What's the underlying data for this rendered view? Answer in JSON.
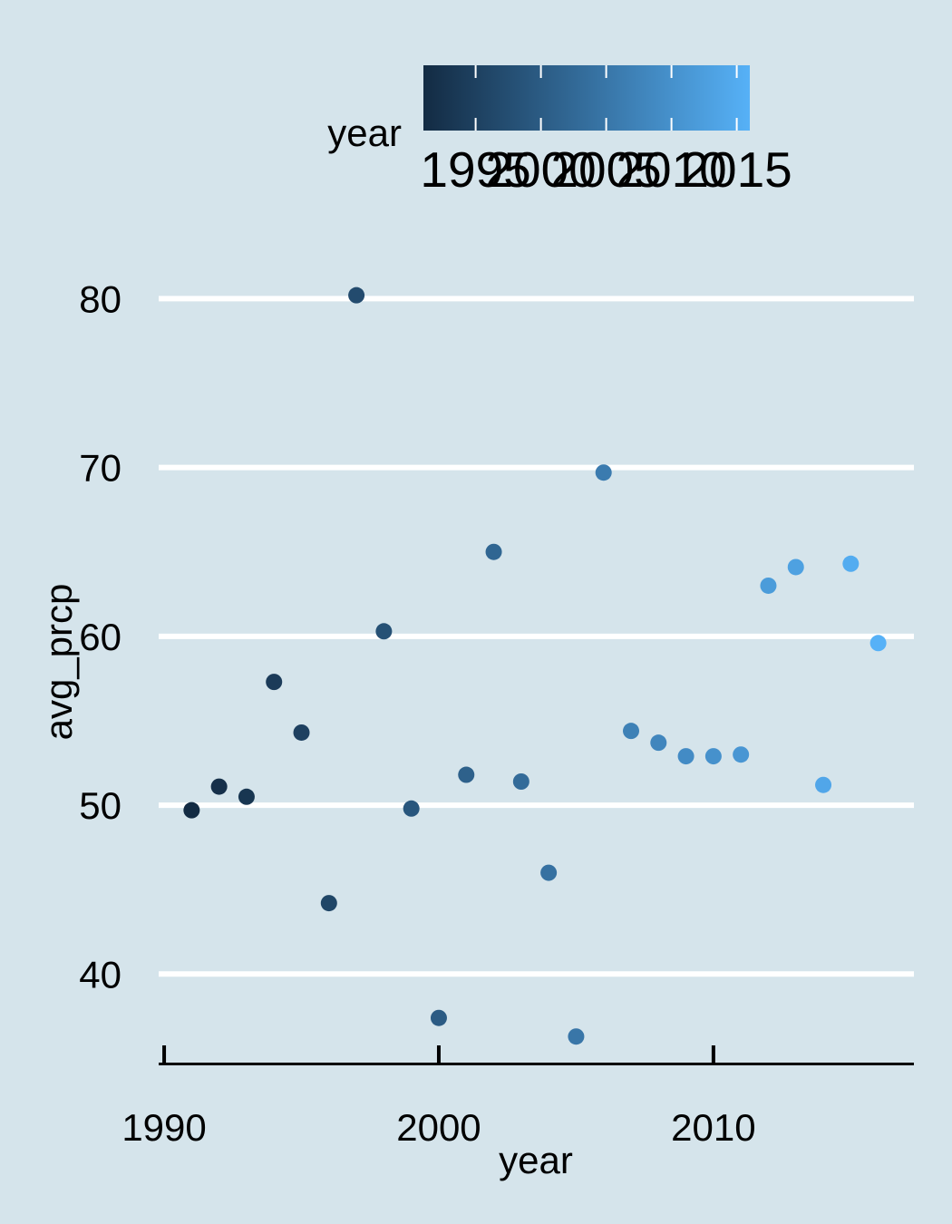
{
  "chart_data": {
    "type": "scatter",
    "xlabel": "year",
    "ylabel": "avg_prcp",
    "xlim": [
      1989.8,
      2017.3
    ],
    "ylim": [
      34.7,
      84.8
    ],
    "x_ticks": [
      1990,
      2000,
      2010
    ],
    "y_ticks": [
      40,
      50,
      60,
      70,
      80
    ],
    "grid": "horizontal major lines only",
    "legend": {
      "title": "year",
      "position": "top",
      "type": "colorbar",
      "range": [
        1991,
        2016
      ],
      "ticks": [
        1995,
        2000,
        2005,
        2010,
        2015
      ],
      "color_low": "#132b43",
      "color_high": "#56b1f7"
    },
    "background": "#d5e4eb",
    "points": [
      {
        "x": 1991,
        "y": 49.7
      },
      {
        "x": 1992,
        "y": 51.1
      },
      {
        "x": 1993,
        "y": 50.5
      },
      {
        "x": 1994,
        "y": 57.3
      },
      {
        "x": 1995,
        "y": 54.3
      },
      {
        "x": 1996,
        "y": 44.2
      },
      {
        "x": 1997,
        "y": 80.2
      },
      {
        "x": 1998,
        "y": 60.3
      },
      {
        "x": 1999,
        "y": 49.8
      },
      {
        "x": 2000,
        "y": 37.4
      },
      {
        "x": 2001,
        "y": 51.8
      },
      {
        "x": 2002,
        "y": 65.0
      },
      {
        "x": 2003,
        "y": 51.4
      },
      {
        "x": 2004,
        "y": 46.0
      },
      {
        "x": 2005,
        "y": 36.3
      },
      {
        "x": 2006,
        "y": 69.7
      },
      {
        "x": 2007,
        "y": 54.4
      },
      {
        "x": 2008,
        "y": 53.7
      },
      {
        "x": 2009,
        "y": 52.9
      },
      {
        "x": 2010,
        "y": 52.9
      },
      {
        "x": 2011,
        "y": 53.0
      },
      {
        "x": 2012,
        "y": 63.0
      },
      {
        "x": 2013,
        "y": 64.1
      },
      {
        "x": 2014,
        "y": 51.2
      },
      {
        "x": 2015,
        "y": 64.3
      },
      {
        "x": 2016,
        "y": 59.6
      }
    ]
  }
}
